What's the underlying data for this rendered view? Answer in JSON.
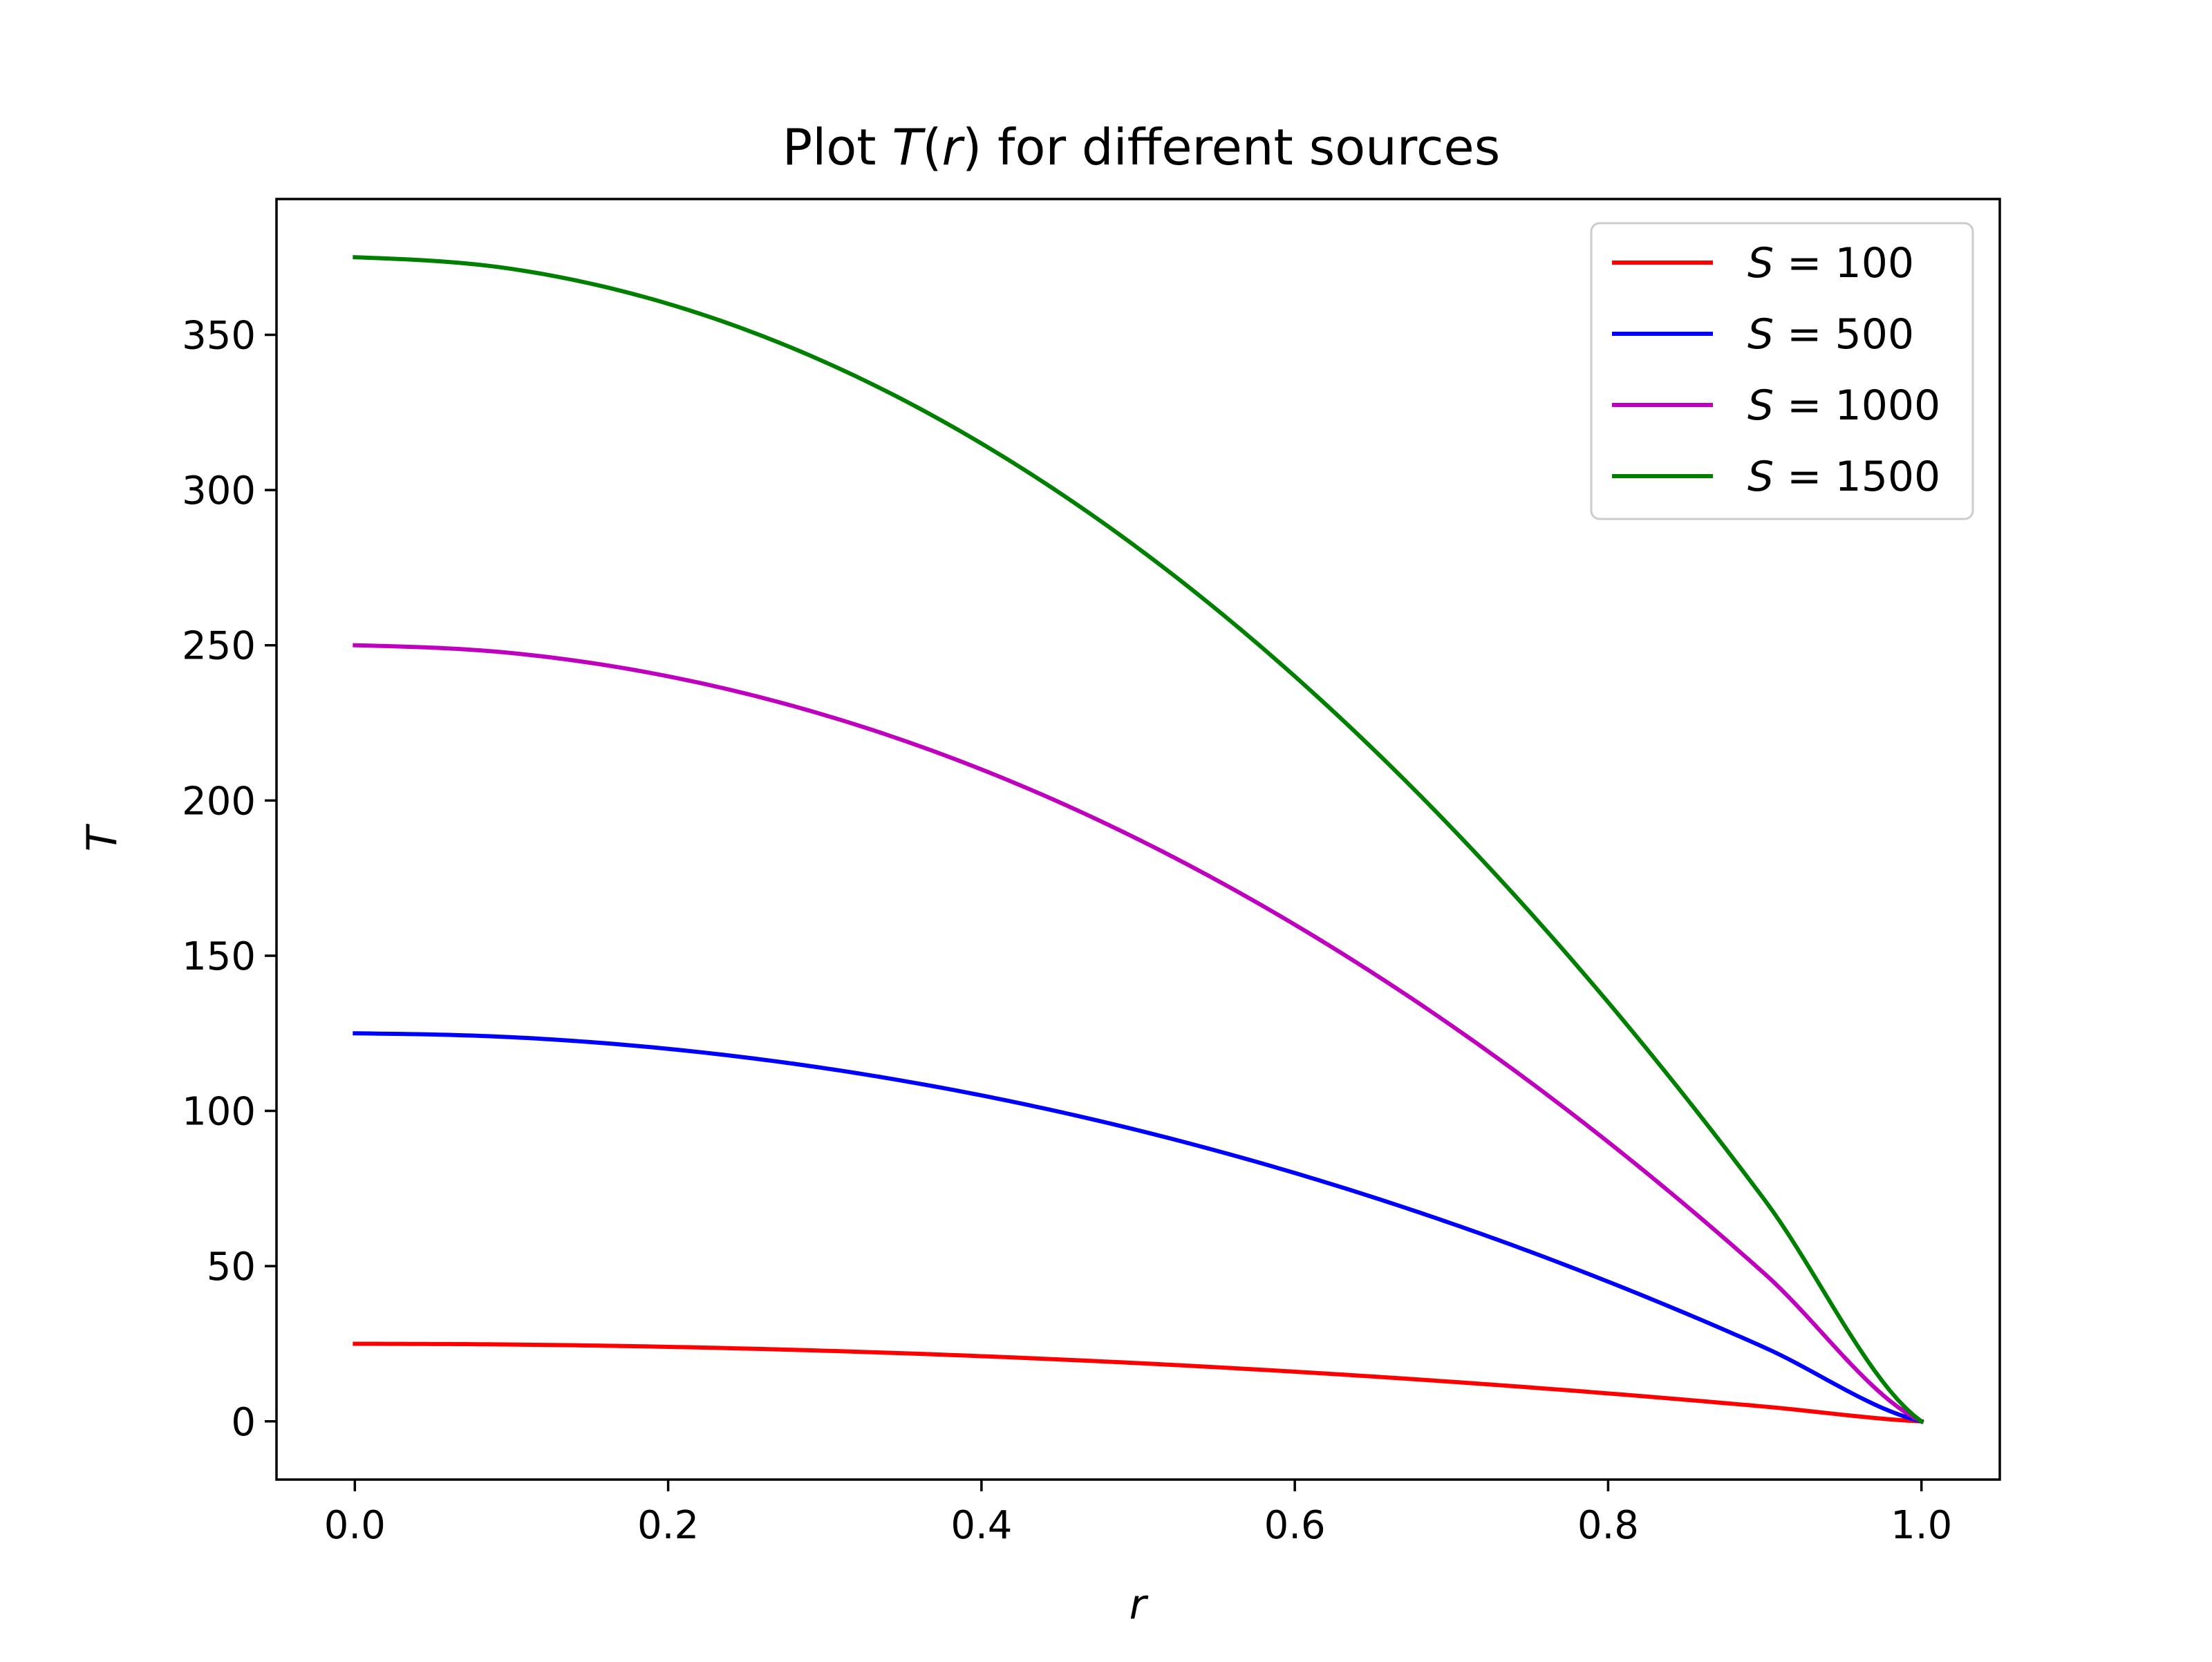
{
  "chart_data": {
    "type": "line",
    "title": {
      "prefix": "Plot ",
      "math": "T",
      "mid": "(",
      "math2": "r",
      "suffix": ") for different sources"
    },
    "xlabel": "r",
    "ylabel": "T",
    "xlim": [
      -0.05,
      1.05
    ],
    "ylim": [
      -18.75,
      393.75
    ],
    "xticks": [
      0.0,
      0.2,
      0.4,
      0.6,
      0.8,
      1.0
    ],
    "xtick_labels": [
      "0.0",
      "0.2",
      "0.4",
      "0.6",
      "0.8",
      "1.0"
    ],
    "yticks": [
      0,
      50,
      100,
      150,
      200,
      250,
      300,
      350
    ],
    "ytick_labels": [
      "0",
      "50",
      "100",
      "150",
      "200",
      "250",
      "300",
      "350"
    ],
    "grid": false,
    "legend_position": "top-right",
    "x": [
      0.0,
      0.1,
      0.2,
      0.3,
      0.4,
      0.5,
      0.6,
      0.7,
      0.8,
      0.9,
      1.0
    ],
    "series": [
      {
        "var": "S",
        "eq": " = ",
        "val": "100",
        "color": "#ff0000",
        "values": [
          25,
          24.75,
          24,
          22.75,
          21,
          18.75,
          16,
          12.75,
          9,
          4.75,
          0
        ]
      },
      {
        "var": "S",
        "eq": " = ",
        "val": "500",
        "color": "#0000ff",
        "values": [
          125,
          123.75,
          120,
          113.75,
          105,
          93.75,
          80,
          63.75,
          45,
          23.75,
          0
        ]
      },
      {
        "var": "S",
        "eq": " = ",
        "val": "1000",
        "color": "#bf00bf",
        "values": [
          250,
          247.5,
          240,
          227.5,
          210,
          187.5,
          160,
          127.5,
          90,
          47.5,
          0
        ]
      },
      {
        "var": "S",
        "eq": " = ",
        "val": "1500",
        "color": "#008000",
        "values": [
          375,
          371.25,
          360,
          341.25,
          315,
          281.25,
          240,
          191.25,
          135,
          71.25,
          0
        ]
      }
    ]
  }
}
